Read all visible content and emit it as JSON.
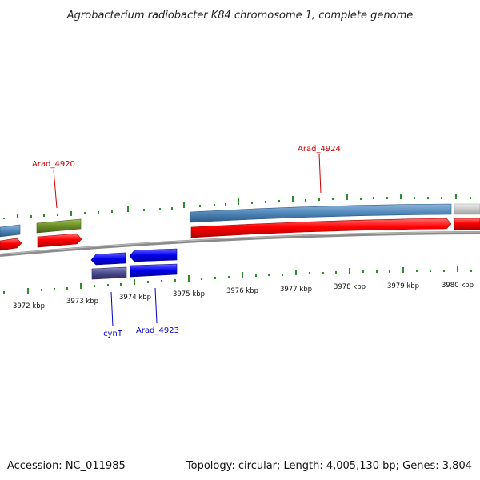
{
  "title": "Agrobacterium radiobacter K84 chromosome 1, complete genome",
  "footer": {
    "accession": "Accession: NC_011985",
    "summary": "Topology: circular; Length: 4,005,130 bp; Genes: 3,804"
  },
  "scale": {
    "unit": "kbp",
    "ticks": [
      "3972 kbp",
      "3973 kbp",
      "3974 kbp",
      "3975 kbp",
      "3976 kbp",
      "3977 kbp",
      "3978 kbp",
      "3979 kbp",
      "3980 kbp"
    ]
  },
  "gene_labels": [
    {
      "id": "arad4920",
      "text": "Arad_4920",
      "color": "#cc0000"
    },
    {
      "id": "arad4924",
      "text": "Arad_4924",
      "color": "#cc0000"
    },
    {
      "id": "cynt",
      "text": "cynT",
      "color": "#0000cc"
    },
    {
      "id": "arad4923",
      "text": "Arad_4923",
      "color": "#0000cc"
    }
  ],
  "colors": {
    "forward_gene": "#ff0000",
    "forward_feature": "#4f86b8",
    "reverse_gene": "#0000ee",
    "reverse_feature": "#4a4a8c",
    "other_feature": "#6b8e23",
    "partial_feature": "#c8c8c8",
    "backbone": "#888888",
    "tick": "#2e8b2e"
  }
}
